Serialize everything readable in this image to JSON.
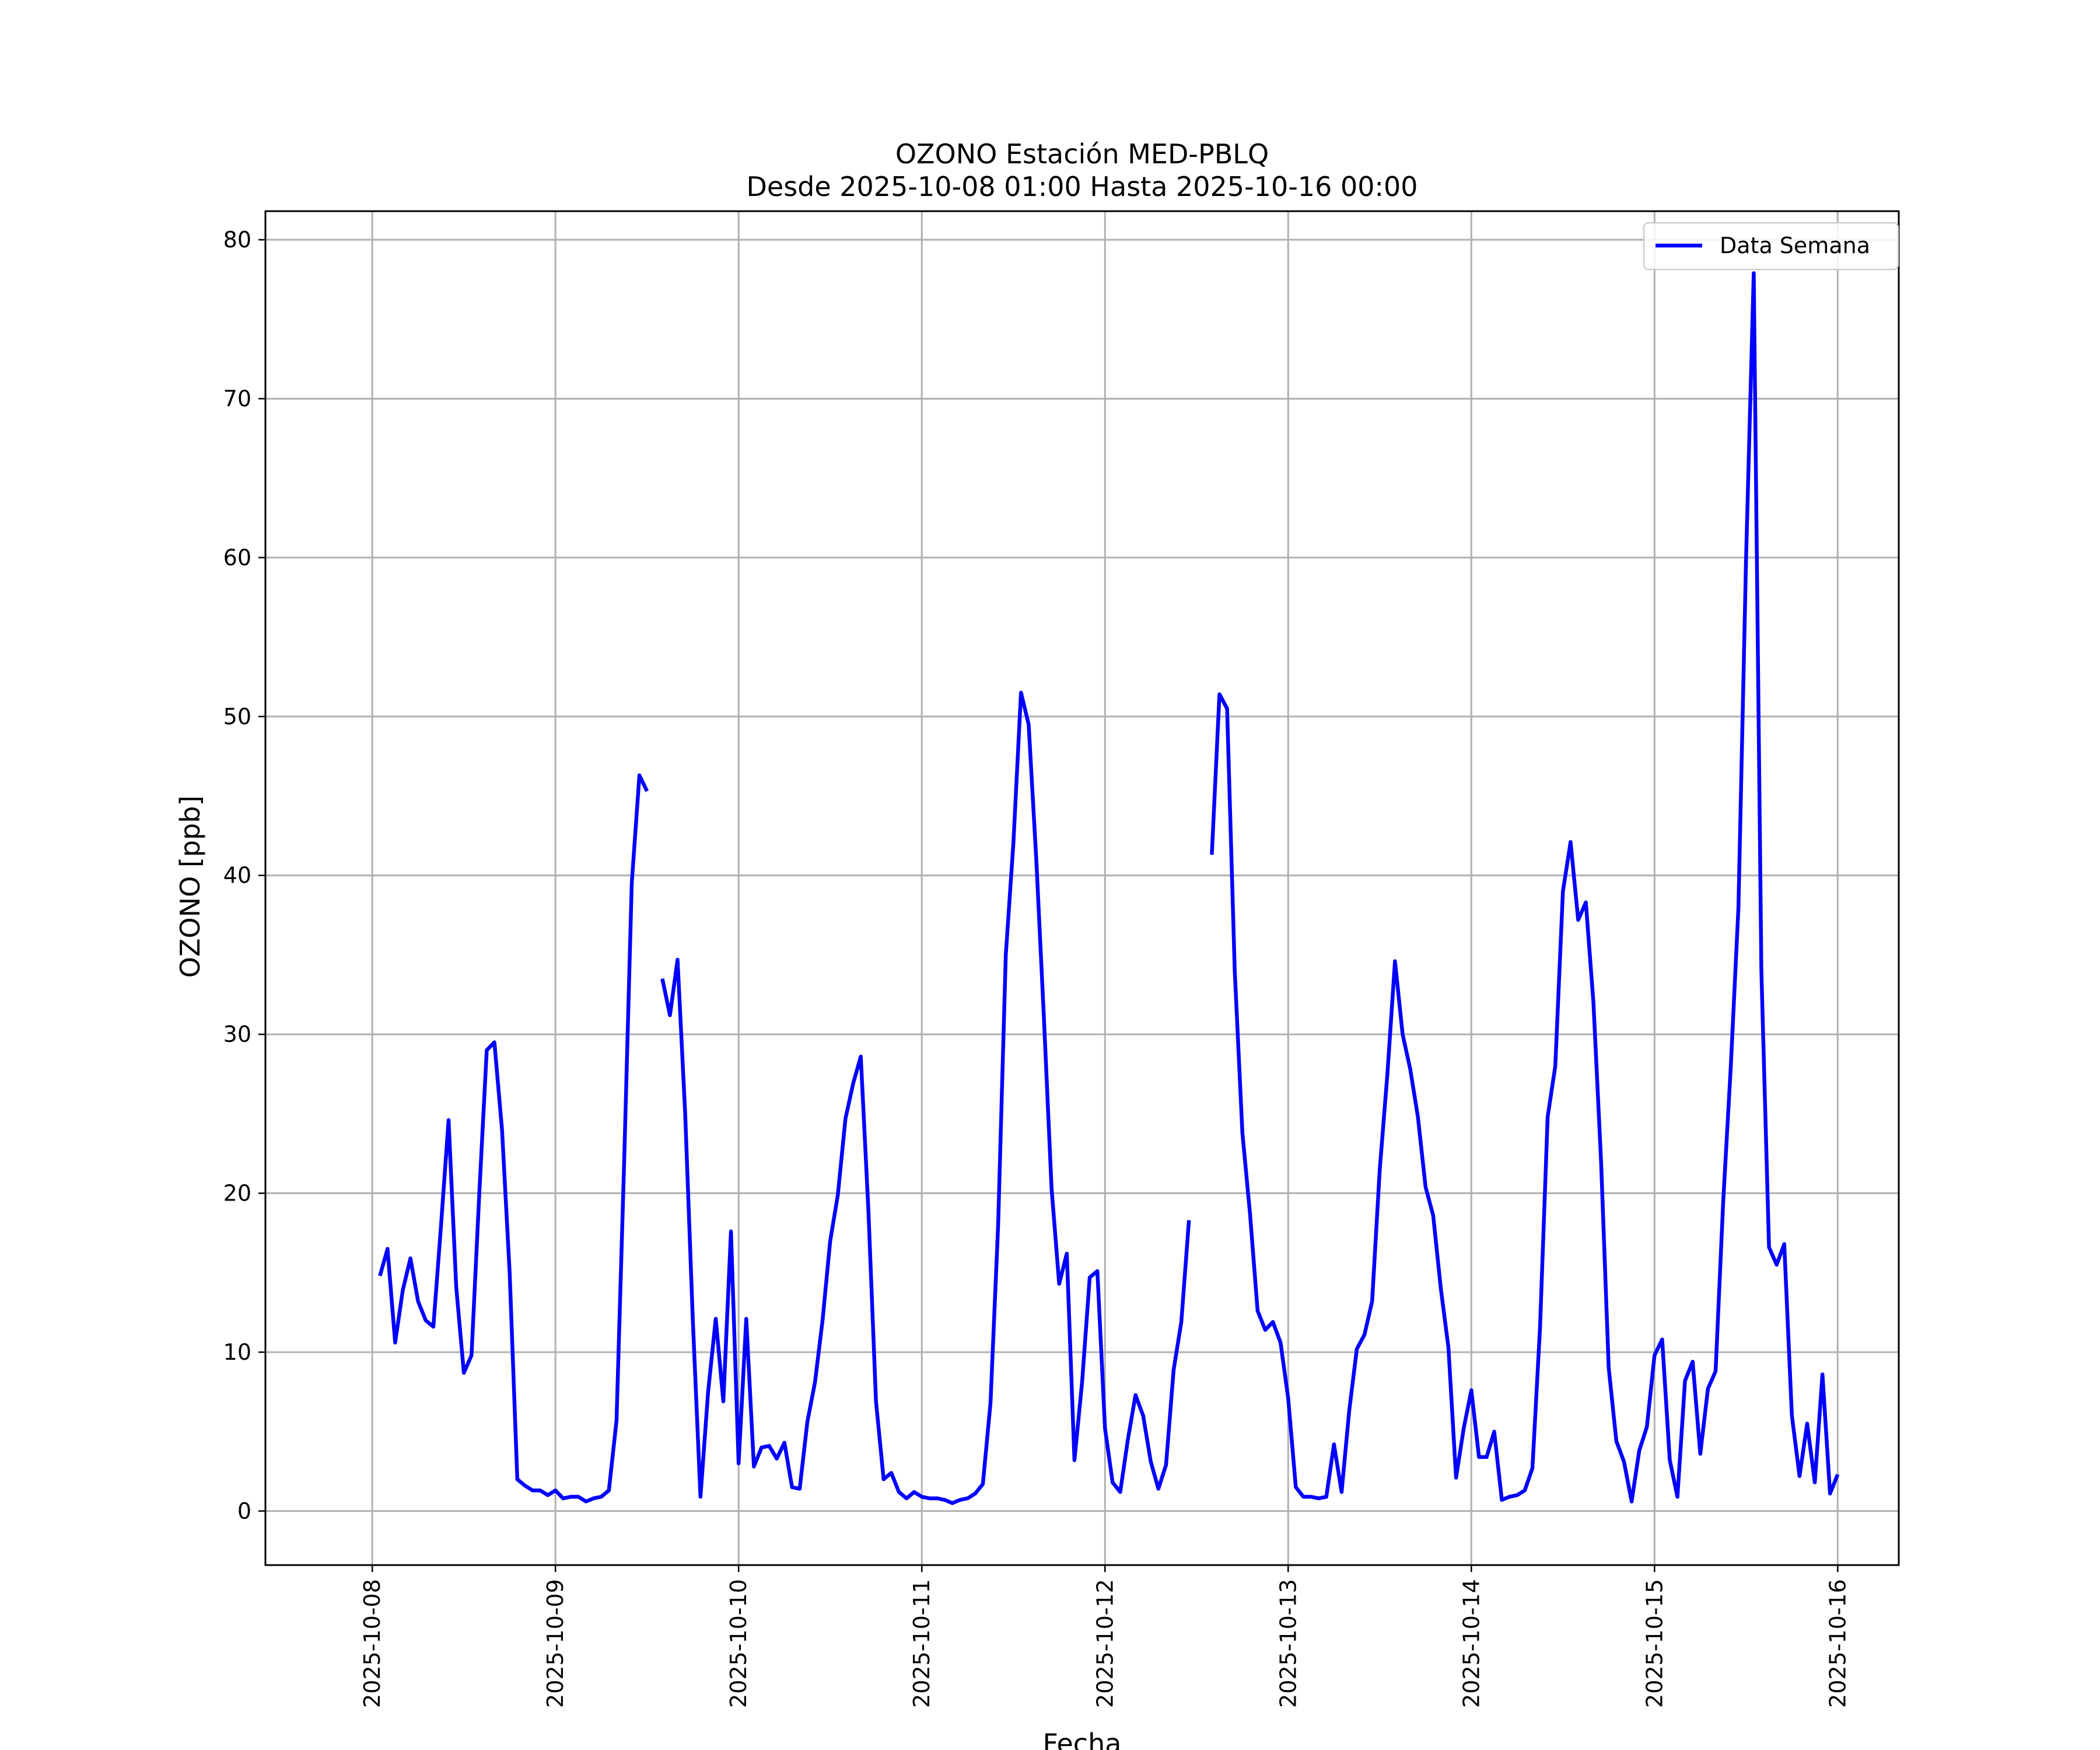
{
  "chart_data": {
    "type": "line",
    "title": "OZONO Estación MED-PBLQ",
    "subtitle": "Desde 2025-10-08 01:00 Hasta 2025-10-16 00:00",
    "xlabel": "Fecha",
    "ylabel": "OZONO [ppb]",
    "x_ticks": [
      "2025-10-08",
      "2025-10-09",
      "2025-10-10",
      "2025-10-11",
      "2025-10-12",
      "2025-10-13",
      "2025-10-14",
      "2025-10-15",
      "2025-10-16"
    ],
    "y_ticks": [
      0,
      10,
      20,
      30,
      40,
      50,
      60,
      70,
      80
    ],
    "xlim": [
      "2025-10-07 10:00",
      "2025-10-16 08:00"
    ],
    "ylim": [
      -3.4,
      81.8
    ],
    "grid": true,
    "legend_position": "top-right",
    "series": [
      {
        "name": "Data Semana",
        "color": "#0000ff",
        "points": [
          [
            "2025-10-08 01:00",
            14.8
          ],
          [
            "2025-10-08 02:00",
            16.5
          ],
          [
            "2025-10-08 03:00",
            10.6
          ],
          [
            "2025-10-08 04:00",
            13.9
          ],
          [
            "2025-10-08 05:00",
            15.9
          ],
          [
            "2025-10-08 06:00",
            13.2
          ],
          [
            "2025-10-08 07:00",
            12.0
          ],
          [
            "2025-10-08 08:00",
            11.6
          ],
          [
            "2025-10-08 09:00",
            17.9
          ],
          [
            "2025-10-08 10:00",
            24.6
          ],
          [
            "2025-10-08 11:00",
            14.1
          ],
          [
            "2025-10-08 12:00",
            8.7
          ],
          [
            "2025-10-08 13:00",
            9.8
          ],
          [
            "2025-10-08 14:00",
            19.8
          ],
          [
            "2025-10-08 15:00",
            29.0
          ],
          [
            "2025-10-08 16:00",
            29.5
          ],
          [
            "2025-10-08 17:00",
            24.0
          ],
          [
            "2025-10-08 18:00",
            15.0
          ],
          [
            "2025-10-08 19:00",
            2.0
          ],
          [
            "2025-10-08 20:00",
            1.6
          ],
          [
            "2025-10-08 21:00",
            1.3
          ],
          [
            "2025-10-08 22:00",
            1.3
          ],
          [
            "2025-10-08 23:00",
            1.0
          ],
          [
            "2025-10-09 00:00",
            1.3
          ],
          [
            "2025-10-09 01:00",
            0.8
          ],
          [
            "2025-10-09 02:00",
            0.9
          ],
          [
            "2025-10-09 03:00",
            0.9
          ],
          [
            "2025-10-09 04:00",
            0.6
          ],
          [
            "2025-10-09 05:00",
            0.8
          ],
          [
            "2025-10-09 06:00",
            0.9
          ],
          [
            "2025-10-09 07:00",
            1.3
          ],
          [
            "2025-10-09 08:00",
            5.7
          ],
          [
            "2025-10-09 09:00",
            22.0
          ],
          [
            "2025-10-09 10:00",
            39.5
          ],
          [
            "2025-10-09 11:00",
            46.3
          ],
          [
            "2025-10-09 12:00",
            45.3
          ],
          [
            "2025-10-09 13:00",
            null
          ],
          [
            "2025-10-09 14:00",
            33.5
          ],
          [
            "2025-10-09 15:00",
            31.2
          ],
          [
            "2025-10-09 16:00",
            34.7
          ],
          [
            "2025-10-09 17:00",
            25.0
          ],
          [
            "2025-10-09 18:00",
            12.0
          ],
          [
            "2025-10-09 19:00",
            0.9
          ],
          [
            "2025-10-09 20:00",
            7.5
          ],
          [
            "2025-10-09 21:00",
            12.1
          ],
          [
            "2025-10-09 22:00",
            6.9
          ],
          [
            "2025-10-09 23:00",
            17.6
          ],
          [
            "2025-10-10 00:00",
            3.0
          ],
          [
            "2025-10-10 01:00",
            12.1
          ],
          [
            "2025-10-10 02:00",
            2.8
          ],
          [
            "2025-10-10 03:00",
            4.0
          ],
          [
            "2025-10-10 04:00",
            4.1
          ],
          [
            "2025-10-10 05:00",
            3.3
          ],
          [
            "2025-10-10 06:00",
            4.3
          ],
          [
            "2025-10-10 07:00",
            1.5
          ],
          [
            "2025-10-10 08:00",
            1.4
          ],
          [
            "2025-10-10 09:00",
            5.6
          ],
          [
            "2025-10-10 10:00",
            8.1
          ],
          [
            "2025-10-10 11:00",
            12.0
          ],
          [
            "2025-10-10 12:00",
            17.0
          ],
          [
            "2025-10-10 13:00",
            19.9
          ],
          [
            "2025-10-10 14:00",
            24.7
          ],
          [
            "2025-10-10 15:00",
            26.9
          ],
          [
            "2025-10-10 16:00",
            28.6
          ],
          [
            "2025-10-10 17:00",
            19.0
          ],
          [
            "2025-10-10 18:00",
            6.9
          ],
          [
            "2025-10-10 19:00",
            2.0
          ],
          [
            "2025-10-10 20:00",
            2.4
          ],
          [
            "2025-10-10 21:00",
            1.2
          ],
          [
            "2025-10-10 22:00",
            0.8
          ],
          [
            "2025-10-10 23:00",
            1.2
          ],
          [
            "2025-10-11 00:00",
            0.9
          ],
          [
            "2025-10-11 01:00",
            0.8
          ],
          [
            "2025-10-11 02:00",
            0.8
          ],
          [
            "2025-10-11 03:00",
            0.7
          ],
          [
            "2025-10-11 04:00",
            0.5
          ],
          [
            "2025-10-11 05:00",
            0.7
          ],
          [
            "2025-10-11 06:00",
            0.8
          ],
          [
            "2025-10-11 07:00",
            1.1
          ],
          [
            "2025-10-11 08:00",
            1.7
          ],
          [
            "2025-10-11 09:00",
            6.8
          ],
          [
            "2025-10-11 10:00",
            18.0
          ],
          [
            "2025-10-11 11:00",
            35.0
          ],
          [
            "2025-10-11 12:00",
            42.0
          ],
          [
            "2025-10-11 13:00",
            51.5
          ],
          [
            "2025-10-11 14:00",
            49.5
          ],
          [
            "2025-10-11 15:00",
            41.0
          ],
          [
            "2025-10-11 16:00",
            31.0
          ],
          [
            "2025-10-11 17:00",
            20.3
          ],
          [
            "2025-10-11 18:00",
            14.3
          ],
          [
            "2025-10-11 19:00",
            16.2
          ],
          [
            "2025-10-11 20:00",
            3.2
          ],
          [
            "2025-10-11 21:00",
            8.1
          ],
          [
            "2025-10-11 22:00",
            14.7
          ],
          [
            "2025-10-11 23:00",
            15.1
          ],
          [
            "2025-10-12 00:00",
            5.2
          ],
          [
            "2025-10-12 01:00",
            1.8
          ],
          [
            "2025-10-12 02:00",
            1.2
          ],
          [
            "2025-10-12 03:00",
            4.5
          ],
          [
            "2025-10-12 04:00",
            7.3
          ],
          [
            "2025-10-12 05:00",
            6.0
          ],
          [
            "2025-10-12 06:00",
            3.1
          ],
          [
            "2025-10-12 07:00",
            1.4
          ],
          [
            "2025-10-12 08:00",
            2.9
          ],
          [
            "2025-10-12 09:00",
            8.9
          ],
          [
            "2025-10-12 10:00",
            11.9
          ],
          [
            "2025-10-12 11:00",
            18.3
          ],
          [
            "2025-10-12 12:00",
            null
          ],
          [
            "2025-10-12 13:00",
            null
          ],
          [
            "2025-10-12 14:00",
            41.3
          ],
          [
            "2025-10-12 15:00",
            51.4
          ],
          [
            "2025-10-12 16:00",
            50.5
          ],
          [
            "2025-10-12 17:00",
            34.0
          ],
          [
            "2025-10-12 18:00",
            23.8
          ],
          [
            "2025-10-12 19:00",
            18.7
          ],
          [
            "2025-10-12 20:00",
            12.6
          ],
          [
            "2025-10-12 21:00",
            11.4
          ],
          [
            "2025-10-12 22:00",
            11.9
          ],
          [
            "2025-10-12 23:00",
            10.6
          ],
          [
            "2025-10-13 00:00",
            7.1
          ],
          [
            "2025-10-13 01:00",
            1.5
          ],
          [
            "2025-10-13 02:00",
            0.9
          ],
          [
            "2025-10-13 03:00",
            0.9
          ],
          [
            "2025-10-13 04:00",
            0.8
          ],
          [
            "2025-10-13 05:00",
            0.9
          ],
          [
            "2025-10-13 06:00",
            4.2
          ],
          [
            "2025-10-13 07:00",
            1.2
          ],
          [
            "2025-10-13 08:00",
            6.3
          ],
          [
            "2025-10-13 09:00",
            10.2
          ],
          [
            "2025-10-13 10:00",
            11.1
          ],
          [
            "2025-10-13 11:00",
            13.2
          ],
          [
            "2025-10-13 12:00",
            21.5
          ],
          [
            "2025-10-13 13:00",
            27.5
          ],
          [
            "2025-10-13 14:00",
            34.6
          ],
          [
            "2025-10-13 15:00",
            30.0
          ],
          [
            "2025-10-13 16:00",
            27.8
          ],
          [
            "2025-10-13 17:00",
            24.8
          ],
          [
            "2025-10-13 18:00",
            20.4
          ],
          [
            "2025-10-13 19:00",
            18.6
          ],
          [
            "2025-10-13 20:00",
            14.0
          ],
          [
            "2025-10-13 21:00",
            10.3
          ],
          [
            "2025-10-13 22:00",
            2.1
          ],
          [
            "2025-10-13 23:00",
            5.2
          ],
          [
            "2025-10-14 00:00",
            7.6
          ],
          [
            "2025-10-14 01:00",
            3.4
          ],
          [
            "2025-10-14 02:00",
            3.4
          ],
          [
            "2025-10-14 03:00",
            5.0
          ],
          [
            "2025-10-14 04:00",
            0.7
          ],
          [
            "2025-10-14 05:00",
            0.9
          ],
          [
            "2025-10-14 06:00",
            1.0
          ],
          [
            "2025-10-14 07:00",
            1.3
          ],
          [
            "2025-10-14 08:00",
            2.7
          ],
          [
            "2025-10-14 09:00",
            11.5
          ],
          [
            "2025-10-14 10:00",
            24.8
          ],
          [
            "2025-10-14 11:00",
            28.0
          ],
          [
            "2025-10-14 12:00",
            39.0
          ],
          [
            "2025-10-14 13:00",
            42.1
          ],
          [
            "2025-10-14 14:00",
            37.2
          ],
          [
            "2025-10-14 15:00",
            38.3
          ],
          [
            "2025-10-14 16:00",
            32.0
          ],
          [
            "2025-10-14 17:00",
            22.0
          ],
          [
            "2025-10-14 18:00",
            9.0
          ],
          [
            "2025-10-14 19:00",
            4.4
          ],
          [
            "2025-10-14 20:00",
            3.1
          ],
          [
            "2025-10-14 21:00",
            0.6
          ],
          [
            "2025-10-14 22:00",
            3.8
          ],
          [
            "2025-10-14 23:00",
            5.3
          ],
          [
            "2025-10-15 00:00",
            9.8
          ],
          [
            "2025-10-15 01:00",
            10.8
          ],
          [
            "2025-10-15 02:00",
            3.2
          ],
          [
            "2025-10-15 03:00",
            0.9
          ],
          [
            "2025-10-15 04:00",
            8.2
          ],
          [
            "2025-10-15 05:00",
            9.4
          ],
          [
            "2025-10-15 06:00",
            3.6
          ],
          [
            "2025-10-15 07:00",
            7.7
          ],
          [
            "2025-10-15 08:00",
            8.8
          ],
          [
            "2025-10-15 09:00",
            19.5
          ],
          [
            "2025-10-15 10:00",
            28.0
          ],
          [
            "2025-10-15 11:00",
            38.0
          ],
          [
            "2025-10-15 12:00",
            60.0
          ],
          [
            "2025-10-15 13:00",
            77.9
          ],
          [
            "2025-10-15 14:00",
            34.0
          ],
          [
            "2025-10-15 15:00",
            16.6
          ],
          [
            "2025-10-15 16:00",
            15.5
          ],
          [
            "2025-10-15 17:00",
            16.8
          ],
          [
            "2025-10-15 18:00",
            6.0
          ],
          [
            "2025-10-15 19:00",
            2.2
          ],
          [
            "2025-10-15 20:00",
            5.5
          ],
          [
            "2025-10-15 21:00",
            1.8
          ],
          [
            "2025-10-15 22:00",
            8.6
          ],
          [
            "2025-10-15 23:00",
            1.1
          ],
          [
            "2025-10-16 00:00",
            2.3
          ]
        ]
      }
    ]
  }
}
